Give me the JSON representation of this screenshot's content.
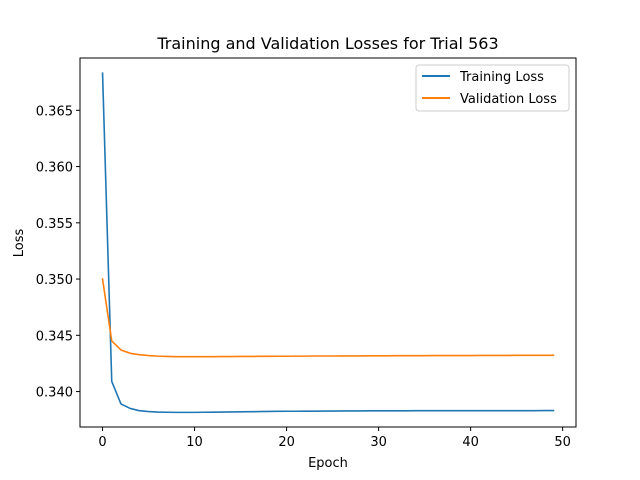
{
  "chart_data": {
    "type": "line",
    "title": "Training and Validation Losses for Trial 563",
    "xlabel": "Epoch",
    "ylabel": "Loss",
    "xlim": [
      -2.45,
      51.45
    ],
    "ylim": [
      0.33685,
      0.36965
    ],
    "xticks": [
      0,
      10,
      20,
      30,
      40,
      50
    ],
    "yticks": [
      0.34,
      0.345,
      0.35,
      0.355,
      0.36,
      0.365
    ],
    "ytick_labels": [
      "0.340",
      "0.345",
      "0.350",
      "0.355",
      "0.360",
      "0.365"
    ],
    "grid": false,
    "legend_position": "top-right",
    "x": [
      0,
      1,
      2,
      3,
      4,
      5,
      6,
      7,
      8,
      9,
      10,
      11,
      12,
      13,
      14,
      15,
      16,
      17,
      18,
      19,
      20,
      21,
      22,
      23,
      24,
      25,
      26,
      27,
      28,
      29,
      30,
      31,
      32,
      33,
      34,
      35,
      36,
      37,
      38,
      39,
      40,
      41,
      42,
      43,
      44,
      45,
      46,
      47,
      48,
      49
    ],
    "series": [
      {
        "name": "Training Loss",
        "color": "#1f77b4",
        "values": [
          0.3683,
          0.3409,
          0.3389,
          0.3385,
          0.3383,
          0.33822,
          0.33818,
          0.33816,
          0.33815,
          0.33815,
          0.33815,
          0.33816,
          0.33817,
          0.33818,
          0.33819,
          0.3382,
          0.33821,
          0.33822,
          0.33823,
          0.33824,
          0.33825,
          0.33825,
          0.33826,
          0.33826,
          0.33827,
          0.33827,
          0.33828,
          0.33828,
          0.33828,
          0.33829,
          0.33829,
          0.33829,
          0.33829,
          0.33829,
          0.3383,
          0.3383,
          0.3383,
          0.3383,
          0.3383,
          0.3383,
          0.3383,
          0.3383,
          0.3383,
          0.3383,
          0.3383,
          0.3383,
          0.3383,
          0.3383,
          0.33831,
          0.33831
        ]
      },
      {
        "name": "Validation Loss",
        "color": "#ff7f0e",
        "values": [
          0.35,
          0.3445,
          0.3437,
          0.3434,
          0.34328,
          0.3432,
          0.34315,
          0.34312,
          0.3431,
          0.3431,
          0.3431,
          0.3431,
          0.3431,
          0.34311,
          0.34311,
          0.34312,
          0.34312,
          0.34313,
          0.34313,
          0.34314,
          0.34314,
          0.34315,
          0.34315,
          0.34316,
          0.34316,
          0.34316,
          0.34317,
          0.34317,
          0.34317,
          0.34318,
          0.34318,
          0.34318,
          0.34319,
          0.34319,
          0.34319,
          0.34319,
          0.3432,
          0.3432,
          0.3432,
          0.3432,
          0.3432,
          0.34321,
          0.34321,
          0.34321,
          0.34321,
          0.34322,
          0.34322,
          0.34322,
          0.34322,
          0.34322
        ]
      }
    ]
  }
}
